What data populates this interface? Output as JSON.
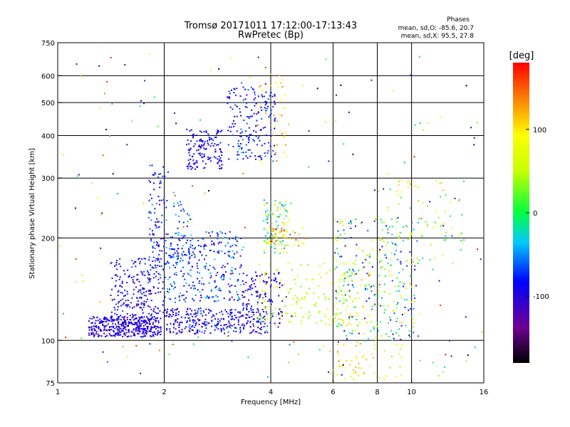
{
  "chart_data": {
    "type": "scatter",
    "title": "Tromsø 20171011 17:12:00-17:13:43",
    "subtitle": "RwPretec (Bp)",
    "xlabel": "Frequency [MHz]",
    "ylabel": "Stationary phase Virtual Height [km]",
    "x_scale": "log",
    "y_scale": "log",
    "xlim": [
      1,
      16
    ],
    "ylim": [
      75,
      750
    ],
    "x_ticks": [
      {
        "value": 1,
        "label": "1"
      },
      {
        "value": 2,
        "label": "2"
      },
      {
        "value": 4,
        "label": "4"
      },
      {
        "value": 6,
        "label": "6"
      },
      {
        "value": 8,
        "label": "8"
      },
      {
        "value": 10,
        "label": "10"
      },
      {
        "value": 16,
        "label": "16"
      }
    ],
    "y_ticks": [
      {
        "value": 75,
        "label": "75"
      },
      {
        "value": 100,
        "label": "100"
      },
      {
        "value": 200,
        "label": "200"
      },
      {
        "value": 300,
        "label": "300"
      },
      {
        "value": 400,
        "label": "400"
      },
      {
        "value": 500,
        "label": "500"
      },
      {
        "value": 600,
        "label": "600"
      },
      {
        "value": 750,
        "label": "750"
      }
    ],
    "grid_x": [
      2,
      4,
      6,
      8,
      10
    ],
    "grid_y": [
      100,
      200,
      300,
      400,
      500,
      600
    ],
    "grid": true,
    "legend": {
      "title": "Phases",
      "line1": "mean, sd,O: -85.6, 20.7",
      "line2": "mean, sd,X:  95.5, 27.8",
      "position": "top-right"
    },
    "colorbar": {
      "label": "[deg]",
      "min": -180,
      "max": 180,
      "ticks": [
        {
          "value": 100,
          "label": "100"
        },
        {
          "value": 0,
          "label": "0"
        },
        {
          "value": -100,
          "label": "-100"
        }
      ]
    },
    "clusters": [
      {
        "f": [
          1.22,
          1.95
        ],
        "h": [
          103,
          118
        ],
        "phase": [
          -120,
          -80
        ],
        "n": 380
      },
      {
        "f": [
          1.4,
          1.98
        ],
        "h": [
          115,
          175
        ],
        "phase": [
          -125,
          -60
        ],
        "n": 230
      },
      {
        "f": [
          1.8,
          2.0
        ],
        "h": [
          150,
          330
        ],
        "phase": [
          -120,
          -50
        ],
        "n": 90
      },
      {
        "f": [
          2.0,
          3.9
        ],
        "h": [
          105,
          125
        ],
        "phase": [
          -125,
          -60
        ],
        "n": 300
      },
      {
        "f": [
          2.0,
          3.3
        ],
        "h": [
          130,
          210
        ],
        "phase": [
          -110,
          -30
        ],
        "n": 280
      },
      {
        "f": [
          2.0,
          2.4
        ],
        "h": [
          160,
          260
        ],
        "phase": [
          -100,
          -40
        ],
        "n": 60
      },
      {
        "f": [
          2.3,
          2.9
        ],
        "h": [
          320,
          420
        ],
        "phase": [
          -110,
          -70
        ],
        "n": 140
      },
      {
        "f": [
          3.0,
          4.1
        ],
        "h": [
          340,
          560
        ],
        "phase": [
          -110,
          -55
        ],
        "n": 180
      },
      {
        "f": [
          3.7,
          4.4
        ],
        "h": [
          330,
          640
        ],
        "phase": [
          60,
          160
        ],
        "n": 40
      },
      {
        "f": [
          3.3,
          4.3
        ],
        "h": [
          110,
          160
        ],
        "phase": [
          -120,
          -80
        ],
        "n": 120
      },
      {
        "f": [
          3.8,
          4.5
        ],
        "h": [
          180,
          260
        ],
        "phase": [
          -60,
          100
        ],
        "n": 100
      },
      {
        "f": [
          4.0,
          5.0
        ],
        "h": [
          190,
          215
        ],
        "phase": [
          60,
          160
        ],
        "n": 40
      },
      {
        "f": [
          3.6,
          7.0
        ],
        "h": [
          110,
          170
        ],
        "phase": [
          20,
          110
        ],
        "n": 180
      },
      {
        "f": [
          6.0,
          10.5
        ],
        "h": [
          100,
          230
        ],
        "phase": [
          -120,
          120
        ],
        "n": 300
      },
      {
        "f": [
          5.8,
          9.5
        ],
        "h": [
          75,
          100
        ],
        "phase": [
          40,
          140
        ],
        "n": 60
      },
      {
        "f": [
          8.5,
          14.0
        ],
        "h": [
          160,
          300
        ],
        "phase": [
          -40,
          120
        ],
        "n": 80
      },
      {
        "f": [
          1.0,
          16.0
        ],
        "h": [
          75,
          700
        ],
        "phase": [
          -180,
          180
        ],
        "n": 200
      }
    ]
  }
}
